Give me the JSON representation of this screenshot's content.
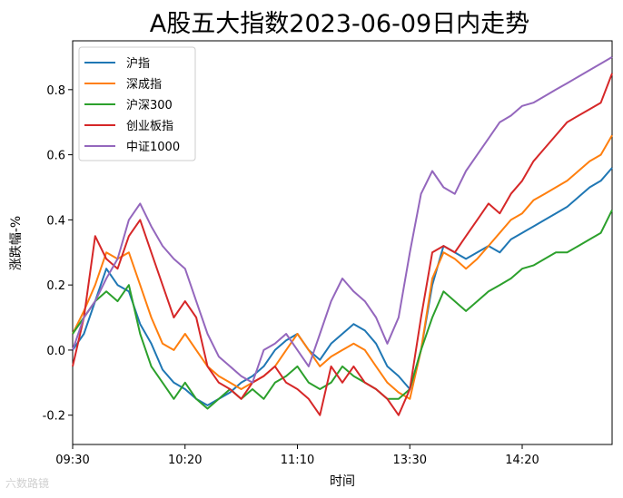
{
  "chart_data": {
    "type": "line",
    "title": "A股五大指数2023-06-09日内走势",
    "xlabel": "时间",
    "ylabel": "涨跌幅-%",
    "ylim": [
      -0.29,
      0.95
    ],
    "xlim_minutes": [
      0,
      240
    ],
    "x_tick_labels": [
      "09:30",
      "10:20",
      "11:10",
      "13:30",
      "14:20"
    ],
    "x_tick_minutes": [
      0,
      50,
      100,
      150,
      200
    ],
    "y_ticks": [
      -0.2,
      0.0,
      0.2,
      0.4,
      0.6,
      0.8
    ],
    "y_tick_labels": [
      "-0.2",
      "0.0",
      "0.2",
      "0.4",
      "0.6",
      "0.8"
    ],
    "grid": false,
    "legend_position": "top-left",
    "colors": [
      "#1f77b4",
      "#ff7f0e",
      "#2ca02c",
      "#d62728",
      "#9467bd"
    ],
    "series": [
      {
        "name": "沪指",
        "x": [
          0,
          5,
          10,
          15,
          20,
          25,
          30,
          35,
          40,
          45,
          50,
          55,
          60,
          65,
          70,
          75,
          80,
          85,
          90,
          95,
          100,
          105,
          110,
          115,
          120,
          125,
          130,
          135,
          140,
          145,
          150,
          155,
          160,
          165,
          170,
          175,
          180,
          185,
          190,
          195,
          200,
          205,
          210,
          215,
          220,
          225,
          230,
          235,
          240
        ],
        "y": [
          0.0,
          0.05,
          0.15,
          0.25,
          0.2,
          0.18,
          0.08,
          0.02,
          -0.06,
          -0.1,
          -0.12,
          -0.15,
          -0.17,
          -0.15,
          -0.13,
          -0.1,
          -0.08,
          -0.05,
          0.0,
          0.03,
          0.05,
          0.0,
          -0.03,
          0.02,
          0.05,
          0.08,
          0.06,
          0.02,
          -0.05,
          -0.08,
          -0.12,
          0.0,
          0.2,
          0.32,
          0.3,
          0.28,
          0.3,
          0.32,
          0.3,
          0.34,
          0.36,
          0.38,
          0.4,
          0.42,
          0.44,
          0.47,
          0.5,
          0.52,
          0.56
        ]
      },
      {
        "name": "深成指",
        "x": [
          0,
          5,
          10,
          15,
          20,
          25,
          30,
          35,
          40,
          45,
          50,
          55,
          60,
          65,
          70,
          75,
          80,
          85,
          90,
          95,
          100,
          105,
          110,
          115,
          120,
          125,
          130,
          135,
          140,
          145,
          150,
          155,
          160,
          165,
          170,
          175,
          180,
          185,
          190,
          195,
          200,
          205,
          210,
          215,
          220,
          225,
          230,
          235,
          240
        ],
        "y": [
          0.05,
          0.12,
          0.2,
          0.3,
          0.28,
          0.3,
          0.2,
          0.1,
          0.02,
          0.0,
          0.05,
          0.0,
          -0.05,
          -0.08,
          -0.1,
          -0.12,
          -0.1,
          -0.08,
          -0.05,
          0.0,
          0.05,
          0.0,
          -0.05,
          -0.02,
          0.0,
          0.02,
          0.0,
          -0.05,
          -0.1,
          -0.13,
          -0.15,
          0.0,
          0.22,
          0.3,
          0.28,
          0.25,
          0.28,
          0.32,
          0.36,
          0.4,
          0.42,
          0.46,
          0.48,
          0.5,
          0.52,
          0.55,
          0.58,
          0.6,
          0.66
        ]
      },
      {
        "name": "沪深300",
        "x": [
          0,
          5,
          10,
          15,
          20,
          25,
          30,
          35,
          40,
          45,
          50,
          55,
          60,
          65,
          70,
          75,
          80,
          85,
          90,
          95,
          100,
          105,
          110,
          115,
          120,
          125,
          130,
          135,
          140,
          145,
          150,
          155,
          160,
          165,
          170,
          175,
          180,
          185,
          190,
          195,
          200,
          205,
          210,
          215,
          220,
          225,
          230,
          235,
          240
        ],
        "y": [
          0.05,
          0.1,
          0.15,
          0.18,
          0.15,
          0.2,
          0.05,
          -0.05,
          -0.1,
          -0.15,
          -0.1,
          -0.15,
          -0.18,
          -0.15,
          -0.12,
          -0.15,
          -0.12,
          -0.15,
          -0.1,
          -0.08,
          -0.05,
          -0.1,
          -0.12,
          -0.1,
          -0.05,
          -0.08,
          -0.1,
          -0.12,
          -0.15,
          -0.15,
          -0.12,
          0.0,
          0.1,
          0.18,
          0.15,
          0.12,
          0.15,
          0.18,
          0.2,
          0.22,
          0.25,
          0.26,
          0.28,
          0.3,
          0.3,
          0.32,
          0.34,
          0.36,
          0.43
        ]
      },
      {
        "name": "创业板指",
        "x": [
          0,
          5,
          10,
          15,
          20,
          25,
          30,
          35,
          40,
          45,
          50,
          55,
          60,
          65,
          70,
          75,
          80,
          85,
          90,
          95,
          100,
          105,
          110,
          115,
          120,
          125,
          130,
          135,
          140,
          145,
          150,
          155,
          160,
          165,
          170,
          175,
          180,
          185,
          190,
          195,
          200,
          205,
          210,
          215,
          220,
          225,
          230,
          235,
          240
        ],
        "y": [
          -0.05,
          0.1,
          0.35,
          0.28,
          0.25,
          0.35,
          0.4,
          0.3,
          0.2,
          0.1,
          0.15,
          0.1,
          -0.05,
          -0.1,
          -0.12,
          -0.15,
          -0.1,
          -0.08,
          -0.05,
          -0.1,
          -0.12,
          -0.15,
          -0.2,
          -0.05,
          -0.1,
          -0.05,
          -0.1,
          -0.12,
          -0.15,
          -0.2,
          -0.12,
          0.1,
          0.3,
          0.32,
          0.3,
          0.35,
          0.4,
          0.45,
          0.42,
          0.48,
          0.52,
          0.58,
          0.62,
          0.66,
          0.7,
          0.72,
          0.74,
          0.76,
          0.85
        ]
      },
      {
        "name": "中证1000",
        "x": [
          0,
          5,
          10,
          15,
          20,
          25,
          30,
          35,
          40,
          45,
          50,
          55,
          60,
          65,
          70,
          75,
          80,
          85,
          90,
          95,
          100,
          105,
          110,
          115,
          120,
          125,
          130,
          135,
          140,
          145,
          150,
          155,
          160,
          165,
          170,
          175,
          180,
          185,
          190,
          195,
          200,
          205,
          210,
          215,
          220,
          225,
          230,
          235,
          240
        ],
        "y": [
          0.0,
          0.1,
          0.15,
          0.22,
          0.28,
          0.4,
          0.45,
          0.38,
          0.32,
          0.28,
          0.25,
          0.15,
          0.05,
          -0.02,
          -0.05,
          -0.08,
          -0.1,
          0.0,
          0.02,
          0.05,
          0.0,
          -0.05,
          0.05,
          0.15,
          0.22,
          0.18,
          0.15,
          0.1,
          0.02,
          0.1,
          0.3,
          0.48,
          0.55,
          0.5,
          0.48,
          0.55,
          0.6,
          0.65,
          0.7,
          0.72,
          0.75,
          0.76,
          0.78,
          0.8,
          0.82,
          0.84,
          0.86,
          0.88,
          0.9
        ]
      }
    ]
  },
  "watermark": "六数路镜"
}
